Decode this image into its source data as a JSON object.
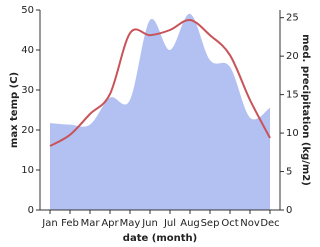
{
  "chart_data": {
    "type": "line",
    "x_label": "date (month)",
    "y_label": "max temp (C)",
    "y2_label": "med. precipitation (kg/m2)",
    "categories": [
      "Jan",
      "Feb",
      "Mar",
      "Apr",
      "May",
      "Jun",
      "Jul",
      "Aug",
      "Sep",
      "Oct",
      "Nov",
      "Dec"
    ],
    "series": [
      {
        "type": "area",
        "axis": "y2",
        "color": "#b3c0f2",
        "values": [
          11.3,
          11.1,
          11.1,
          14.6,
          14.3,
          24.7,
          20.8,
          25.5,
          19.5,
          18.6,
          12,
          13.3
        ]
      },
      {
        "type": "line",
        "color": "#c8545a",
        "values": [
          16,
          18.8,
          24,
          29,
          44.2,
          43.7,
          45,
          47.5,
          43.7,
          38.7,
          27.5,
          18
        ]
      }
    ],
    "ylim": [
      0,
      50
    ],
    "yticks": [
      0,
      10,
      20,
      30,
      40,
      50
    ],
    "y2lim": [
      0,
      26
    ],
    "y2ticks": [
      0,
      5,
      10,
      15,
      20,
      25
    ]
  }
}
